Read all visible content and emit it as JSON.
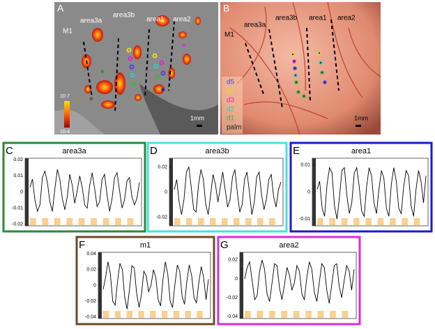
{
  "panels": {
    "A": {
      "letter": "A",
      "labels": [
        "area3a",
        "area3b",
        "area1",
        "area2",
        "M1"
      ],
      "scale_top": "10-7",
      "scale_bottom": "10-4",
      "scalebar": "1mm"
    },
    "B": {
      "letter": "B",
      "labels": [
        "area3a",
        "area3b",
        "area1",
        "area2",
        "M1"
      ],
      "scalebar": "1mm",
      "legend": [
        {
          "name": "d5",
          "color": "#4a4ae0"
        },
        {
          "name": "d4",
          "color": "#e8d428"
        },
        {
          "name": "d3",
          "color": "#e028c8"
        },
        {
          "name": "d2",
          "color": "#38c8c8"
        },
        {
          "name": "d1",
          "color": "#48b048"
        },
        {
          "name": "palm",
          "color": "#222222"
        }
      ]
    }
  },
  "chart_data": [
    {
      "type": "line",
      "panel": "C",
      "title": "area3a",
      "frame_color": "#2a8a3a",
      "color": "#000000",
      "ylim": [
        -0.021,
        0.021
      ],
      "yticks": [
        0.02,
        0.01,
        0,
        -0.01,
        -0.02
      ],
      "values": [
        0.003,
        0.008,
        -0.005,
        -0.012,
        -0.008,
        0.009,
        0.013,
        0.006,
        -0.006,
        -0.012,
        0.002,
        0.014,
        0.008,
        -0.004,
        -0.011,
        -0.003,
        0.011,
        0.004,
        -0.007,
        0.001,
        0.01,
        0.003,
        -0.008,
        -0.01,
        0.004,
        0.012,
        0.002,
        -0.009,
        -0.006,
        0.008,
        0.011,
        -0.002,
        -0.012,
        -0.004,
        0.009,
        0.012,
        0.001,
        -0.01,
        -0.005,
        0.007,
        0.009,
        -0.003,
        -0.008,
        -0.004,
        0.006
      ]
    },
    {
      "type": "line",
      "panel": "D",
      "title": "area3b",
      "frame_color": "#48e0e0",
      "color": "#000000",
      "ylim": [
        -0.027,
        0.027
      ],
      "yticks": [
        0.02,
        0,
        -0.02
      ],
      "values": [
        0.002,
        0.01,
        -0.008,
        -0.018,
        -0.006,
        0.016,
        0.02,
        0.004,
        -0.014,
        -0.016,
        0.006,
        0.018,
        0.01,
        -0.01,
        -0.018,
        -0.002,
        0.014,
        0.006,
        -0.008,
        0.004,
        0.016,
        0.002,
        -0.012,
        -0.006,
        0.012,
        0.018,
        0.0,
        -0.016,
        -0.01,
        0.01,
        0.016,
        0.0,
        -0.018,
        -0.008,
        0.012,
        0.016,
        -0.002,
        -0.014,
        -0.006,
        0.01,
        0.014,
        -0.004,
        -0.012,
        0.002,
        0.008
      ]
    },
    {
      "type": "line",
      "panel": "E",
      "title": "area1",
      "frame_color": "#1a1acc",
      "color": "#000000",
      "ylim": [
        -0.0125,
        0.0125
      ],
      "yticks": [
        0.01,
        0,
        -0.01
      ],
      "values": [
        0.001,
        0.004,
        -0.006,
        -0.009,
        0.003,
        0.009,
        0.007,
        -0.005,
        -0.01,
        -0.002,
        0.008,
        0.009,
        -0.001,
        -0.008,
        -0.004,
        0.007,
        0.009,
        0.002,
        -0.007,
        -0.009,
        0.002,
        0.009,
        0.006,
        -0.004,
        -0.008,
        0.001,
        0.008,
        0.005,
        -0.006,
        -0.009,
        0.003,
        0.009,
        0.004,
        -0.006,
        -0.008,
        0.002,
        0.008,
        0.006,
        -0.005,
        -0.009,
        0.001,
        0.008,
        0.004,
        -0.004,
        0.006
      ]
    },
    {
      "type": "line",
      "panel": "F",
      "title": "m1",
      "frame_color": "#6b4a2a",
      "color": "#000000",
      "ylim": [
        -0.042,
        0.042
      ],
      "yticks": [
        0.04,
        0.02,
        0,
        -0.02,
        -0.04
      ],
      "values": [
        -0.005,
        0.01,
        0.03,
        0.015,
        -0.02,
        -0.025,
        0.005,
        0.028,
        0.02,
        -0.015,
        -0.03,
        -0.005,
        0.025,
        0.022,
        -0.01,
        -0.028,
        -0.012,
        0.018,
        0.012,
        -0.008,
        0.0,
        0.02,
        0.01,
        -0.018,
        -0.026,
        0.008,
        0.03,
        0.014,
        -0.02,
        -0.028,
        0.002,
        0.026,
        0.018,
        -0.014,
        -0.024,
        0.006,
        0.026,
        0.012,
        -0.016,
        -0.022,
        0.004,
        0.024,
        0.01,
        -0.018,
        0.008
      ]
    },
    {
      "type": "line",
      "panel": "G",
      "title": "area2",
      "frame_color": "#e028e0",
      "color": "#000000",
      "ylim": [
        -0.042,
        0.028
      ],
      "yticks": [
        0.02,
        0,
        -0.02,
        -0.04
      ],
      "values": [
        0.0,
        0.012,
        0.018,
        -0.002,
        -0.022,
        -0.018,
        0.008,
        0.02,
        0.01,
        -0.016,
        -0.024,
        -0.004,
        0.016,
        0.014,
        -0.01,
        -0.022,
        -0.006,
        0.012,
        0.004,
        -0.012,
        -0.004,
        0.014,
        0.008,
        -0.016,
        -0.022,
        0.002,
        0.018,
        0.01,
        -0.014,
        -0.024,
        -0.004,
        0.016,
        0.012,
        -0.012,
        -0.026,
        -0.006,
        0.014,
        0.016,
        -0.008,
        -0.02,
        -0.002,
        0.014,
        0.008,
        -0.012,
        0.01
      ]
    }
  ]
}
